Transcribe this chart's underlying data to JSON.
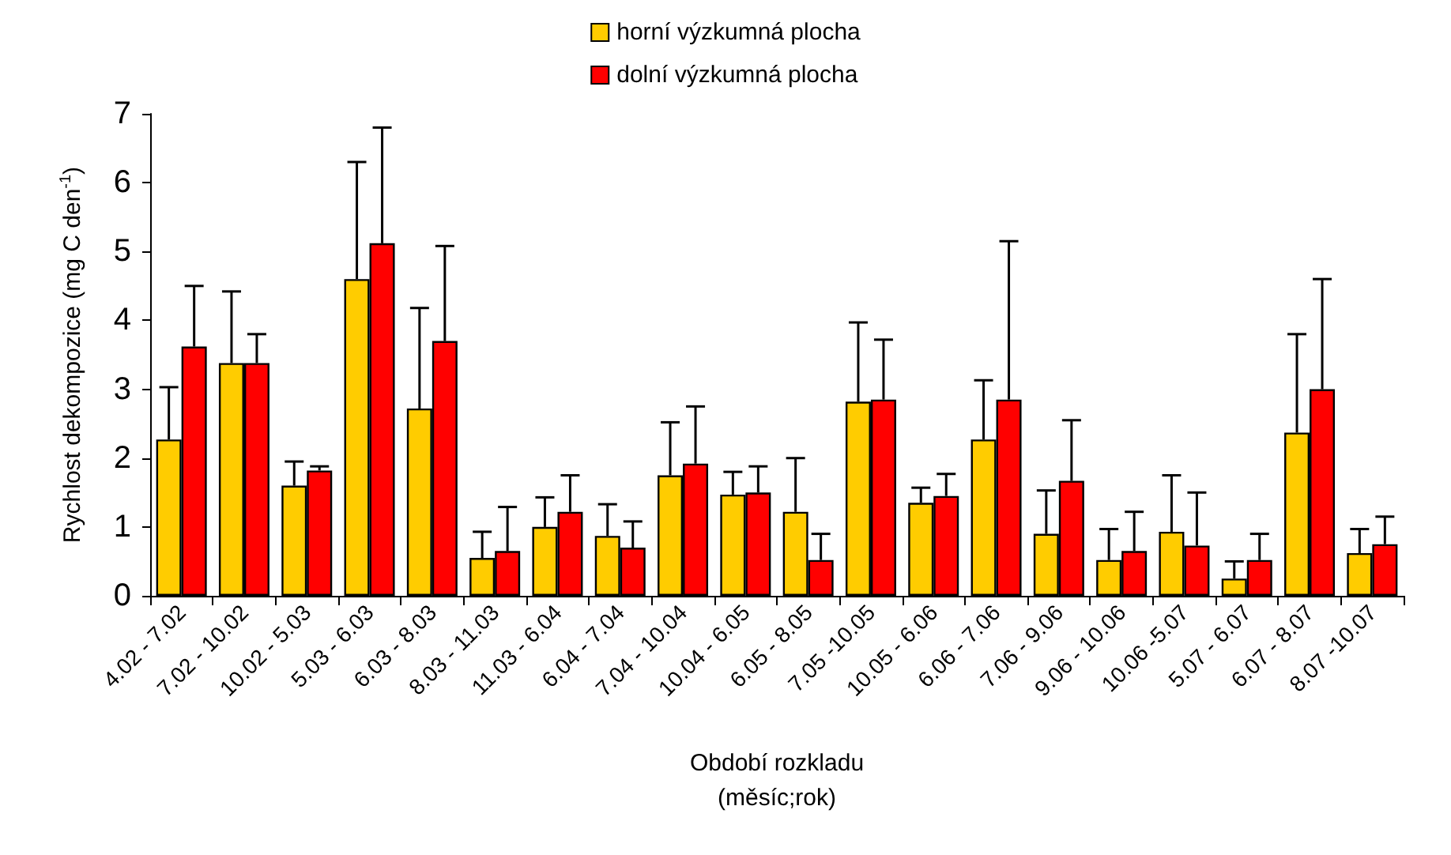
{
  "chart_data": {
    "type": "bar",
    "ylabel": "Rychlost dekompozice (mg C den$^{-1}$)",
    "xlabel": "Období rozkladu\n(měsíc;rok)",
    "categories": [
      "4.02 - 7.02",
      "7.02 - 10.02",
      "10.02 - 5.03",
      "5.03 - 6.03",
      "6.03 - 8.03",
      "8.03 - 11.03",
      "11.03 - 6.04",
      "6.04 - 7.04",
      "7.04 - 10.04",
      "10.04 - 6.05",
      "6.05 - 8.05",
      "7.05 -10.05",
      "10.05 - 6.06",
      "6.06 - 7.06",
      "7.06 - 9.06",
      "9.06 - 10.06",
      "10.06 -5.07",
      "5.07 - 6.07",
      "6.07 - 8.07",
      "8.07 -10.07"
    ],
    "series": [
      {
        "name": "horní výzkumná plocha",
        "color": "#ffcc00",
        "values": [
          2.27,
          3.38,
          1.6,
          4.6,
          2.72,
          0.55,
          1.0,
          0.87,
          1.75,
          1.47,
          1.22,
          2.82,
          1.35,
          2.27,
          0.9,
          0.52,
          0.93,
          0.25,
          2.37,
          0.62
        ],
        "errors": [
          [
            2.27,
            3.03
          ],
          [
            3.38,
            4.42
          ],
          [
            1.6,
            1.95
          ],
          [
            4.6,
            6.3
          ],
          [
            2.72,
            4.18
          ],
          [
            0.55,
            0.93
          ],
          [
            1.0,
            1.43
          ],
          [
            0.87,
            1.33
          ],
          [
            1.75,
            2.52
          ],
          [
            1.47,
            1.8
          ],
          [
            1.22,
            2.0
          ],
          [
            2.82,
            3.97
          ],
          [
            1.35,
            1.57
          ],
          [
            2.27,
            3.13
          ],
          [
            0.9,
            1.53
          ],
          [
            0.52,
            0.97
          ],
          [
            0.93,
            1.75
          ],
          [
            0.25,
            0.5
          ],
          [
            2.37,
            3.8
          ],
          [
            0.62,
            0.97
          ]
        ]
      },
      {
        "name": "dolní výzkumná plocha",
        "color": "#ff0000",
        "values": [
          3.62,
          3.38,
          1.82,
          5.12,
          3.7,
          0.65,
          1.22,
          0.7,
          1.92,
          1.5,
          0.52,
          2.85,
          1.45,
          2.85,
          1.67,
          0.65,
          0.73,
          0.52,
          3.0,
          0.75
        ],
        "errors": [
          [
            3.62,
            4.5
          ],
          [
            3.38,
            3.8
          ],
          [
            1.82,
            1.88
          ],
          [
            5.12,
            6.8
          ],
          [
            3.7,
            5.08
          ],
          [
            0.65,
            1.29
          ],
          [
            1.22,
            1.75
          ],
          [
            0.7,
            1.08
          ],
          [
            1.92,
            2.75
          ],
          [
            1.5,
            1.88
          ],
          [
            0.52,
            0.9
          ],
          [
            2.85,
            3.72
          ],
          [
            1.45,
            1.77
          ],
          [
            2.85,
            5.15
          ],
          [
            1.67,
            2.55
          ],
          [
            0.65,
            1.22
          ],
          [
            0.73,
            1.5
          ],
          [
            0.52,
            0.9
          ],
          [
            3.0,
            4.6
          ],
          [
            0.75,
            1.15
          ]
        ]
      }
    ],
    "ylim": [
      0,
      7
    ],
    "yticks": [
      0,
      1,
      2,
      3,
      4,
      5,
      6,
      7
    ],
    "grid": false,
    "legend": "top"
  }
}
